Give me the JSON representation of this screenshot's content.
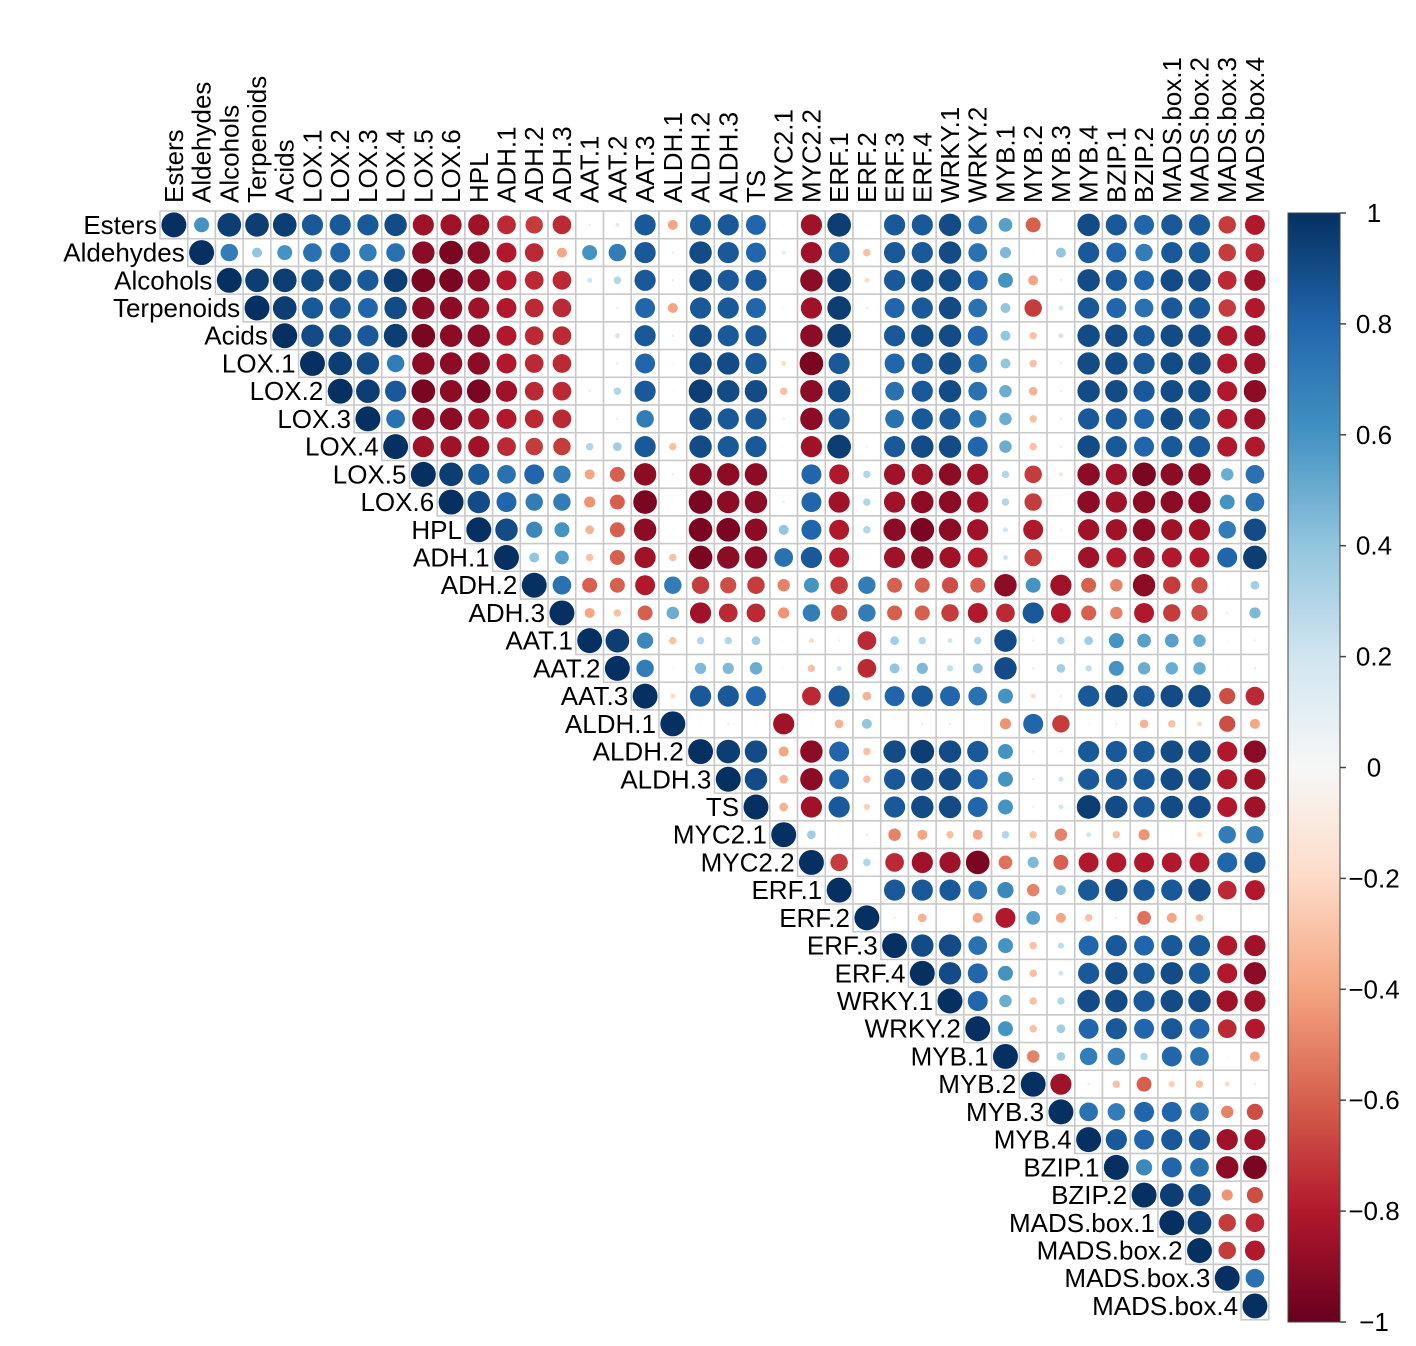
{
  "chart_data": {
    "type": "corrplot",
    "variables": [
      "Esters",
      "Aldehydes",
      "Alcohols",
      "Terpenoids",
      "Acids",
      "LOX.1",
      "LOX.2",
      "LOX.3",
      "LOX.4",
      "LOX.5",
      "LOX.6",
      "HPL",
      "ADH.1",
      "ADH.2",
      "ADH.3",
      "AAT.1",
      "AAT.2",
      "AAT.3",
      "ALDH.1",
      "ALDH.2",
      "ALDH.3",
      "TS",
      "MYC2.1",
      "MYC2.2",
      "ERF.1",
      "ERF.2",
      "ERF.3",
      "ERF.4",
      "WRKY.1",
      "WRKY.2",
      "MYB.1",
      "MYB.2",
      "MYB.3",
      "MYB.4",
      "BZIP.1",
      "BZIP.2",
      "MADS.box.1",
      "MADS.box.2",
      "MADS.box.3",
      "MADS.box.4"
    ],
    "values": [
      [
        1,
        0.6,
        0.95,
        0.95,
        0.95,
        0.85,
        0.85,
        0.85,
        0.9,
        -0.85,
        -0.85,
        -0.85,
        -0.75,
        -0.7,
        -0.75,
        0.1,
        0.15,
        0.85,
        -0.4,
        0.85,
        0.85,
        0.8,
        0.05,
        -0.85,
        0.95,
        0.05,
        0.85,
        0.85,
        0.9,
        0.75,
        0.55,
        -0.6,
        0.05,
        0.9,
        0.85,
        0.8,
        0.85,
        0.85,
        -0.7,
        -0.8
      ],
      [
        1,
        0.7,
        0.4,
        0.6,
        0.75,
        0.8,
        0.7,
        0.75,
        -0.9,
        -0.95,
        -0.9,
        -0.8,
        -0.75,
        -0.4,
        0.6,
        0.7,
        0.85,
        0.1,
        0.9,
        0.85,
        0.8,
        -0.15,
        -0.85,
        0.85,
        -0.3,
        0.85,
        0.85,
        0.9,
        0.75,
        0.45,
        0.05,
        0.4,
        0.85,
        0.8,
        0.7,
        0.85,
        0.85,
        -0.7,
        -0.75
      ],
      [
        1,
        0.95,
        0.95,
        0.9,
        0.9,
        0.85,
        0.95,
        -0.95,
        -0.95,
        -0.9,
        -0.8,
        -0.75,
        -0.75,
        0.2,
        0.3,
        0.85,
        0.1,
        0.9,
        0.85,
        0.85,
        -0.05,
        -0.9,
        0.95,
        -0.2,
        0.85,
        0.9,
        0.9,
        0.8,
        0.6,
        -0.4,
        0.1,
        0.9,
        0.85,
        0.8,
        0.9,
        0.9,
        -0.75,
        -0.85
      ],
      [
        1,
        0.95,
        0.85,
        0.85,
        0.8,
        0.9,
        -0.9,
        -0.9,
        -0.85,
        -0.8,
        -0.75,
        -0.75,
        0.05,
        0.1,
        0.8,
        -0.4,
        0.85,
        0.85,
        0.8,
        -0.05,
        -0.85,
        0.95,
        -0.1,
        0.8,
        0.85,
        0.9,
        0.75,
        0.4,
        -0.7,
        0.2,
        0.85,
        0.8,
        0.75,
        0.85,
        0.85,
        -0.7,
        -0.8
      ],
      [
        1,
        0.9,
        0.9,
        0.85,
        0.95,
        -0.95,
        -0.9,
        -0.9,
        -0.8,
        -0.75,
        -0.75,
        0.05,
        0.2,
        0.85,
        0.1,
        0.9,
        0.85,
        0.85,
        -0.05,
        -0.9,
        0.95,
        0.05,
        0.85,
        0.9,
        0.9,
        0.8,
        0.4,
        -0.3,
        0.2,
        0.9,
        0.9,
        0.85,
        0.9,
        0.9,
        -0.8,
        -0.85
      ],
      [
        1,
        0.95,
        0.9,
        0.7,
        -0.9,
        -0.9,
        -0.9,
        -0.8,
        -0.75,
        -0.75,
        0.05,
        0.1,
        0.8,
        0.05,
        0.9,
        0.9,
        0.85,
        -0.2,
        -0.95,
        0.85,
        0.05,
        0.8,
        0.85,
        0.9,
        0.75,
        0.4,
        -0.3,
        0.1,
        0.9,
        0.9,
        0.85,
        0.9,
        0.9,
        -0.8,
        -0.85
      ],
      [
        1,
        0.95,
        0.85,
        -0.95,
        -0.9,
        -0.95,
        -0.85,
        -0.75,
        -0.75,
        0.1,
        0.3,
        0.85,
        0.05,
        0.95,
        0.9,
        0.9,
        -0.3,
        -0.9,
        0.9,
        0.05,
        0.75,
        0.85,
        0.9,
        0.75,
        0.5,
        -0.35,
        0.1,
        0.9,
        0.9,
        0.85,
        0.9,
        0.9,
        -0.8,
        -0.9
      ],
      [
        1,
        0.75,
        -0.9,
        -0.9,
        -0.85,
        -0.8,
        -0.75,
        -0.75,
        0.05,
        0.1,
        0.7,
        0.05,
        0.9,
        0.85,
        0.85,
        -0.1,
        -0.9,
        0.85,
        0.05,
        0.75,
        0.85,
        0.85,
        0.7,
        0.5,
        -0.3,
        0.1,
        0.85,
        0.85,
        0.8,
        0.9,
        0.85,
        -0.8,
        -0.85
      ],
      [
        1,
        -0.85,
        -0.85,
        -0.85,
        -0.75,
        -0.7,
        -0.7,
        0.3,
        0.35,
        0.85,
        -0.3,
        0.9,
        0.85,
        0.85,
        0.05,
        -0.85,
        0.95,
        -0.1,
        0.85,
        0.9,
        0.9,
        0.8,
        0.5,
        -0.3,
        0.1,
        0.9,
        0.85,
        0.8,
        0.85,
        0.85,
        -0.8,
        -0.8
      ],
      [
        1,
        0.95,
        0.85,
        0.75,
        0.8,
        0.7,
        -0.4,
        -0.6,
        -0.9,
        0.1,
        -0.9,
        -0.9,
        -0.9,
        0.05,
        0.8,
        -0.8,
        0.3,
        -0.85,
        -0.85,
        -0.9,
        -0.85,
        0.3,
        -0.7,
        -0.15,
        -0.9,
        -0.85,
        -0.95,
        -0.9,
        -0.9,
        0.5,
        0.75
      ],
      [
        1,
        0.9,
        0.8,
        0.7,
        0.7,
        -0.45,
        -0.6,
        -0.95,
        -0.05,
        -0.95,
        -0.9,
        -0.9,
        0.1,
        0.8,
        -0.85,
        0.3,
        -0.85,
        -0.9,
        -0.9,
        -0.85,
        0.3,
        -0.7,
        -0.05,
        -0.9,
        -0.85,
        -0.9,
        -0.9,
        -0.9,
        0.6,
        0.75
      ],
      [
        1,
        0.9,
        0.65,
        0.6,
        -0.35,
        -0.6,
        -0.9,
        0.05,
        -0.95,
        -0.95,
        -0.9,
        0.4,
        0.8,
        -0.8,
        0.3,
        -0.9,
        -0.95,
        -0.9,
        -0.85,
        0.2,
        -0.8,
        -0.1,
        -0.85,
        -0.85,
        -0.9,
        -0.85,
        -0.85,
        0.7,
        0.9
      ],
      [
        1,
        0.4,
        0.55,
        -0.3,
        -0.6,
        -0.85,
        -0.3,
        -0.95,
        -0.9,
        -0.9,
        0.75,
        0.85,
        -0.8,
        0.05,
        -0.85,
        -0.9,
        -0.85,
        -0.8,
        0.2,
        -0.7,
        0.05,
        -0.85,
        -0.8,
        -0.85,
        -0.8,
        -0.8,
        0.8,
        0.95
      ],
      [
        1,
        0.75,
        -0.6,
        -0.6,
        -0.8,
        0.7,
        -0.7,
        -0.65,
        -0.7,
        -0.5,
        0.6,
        -0.7,
        0.7,
        -0.6,
        -0.6,
        -0.65,
        -0.6,
        -0.9,
        0.6,
        -0.85,
        -0.6,
        -0.5,
        -0.9,
        -0.7,
        -0.65,
        0.05,
        0.35
      ],
      [
        1,
        -0.4,
        -0.3,
        -0.6,
        0.5,
        -0.85,
        -0.75,
        -0.75,
        -0.45,
        0.7,
        -0.65,
        0.7,
        -0.6,
        -0.6,
        -0.7,
        -0.8,
        -0.75,
        0.85,
        -0.8,
        -0.6,
        -0.5,
        -0.8,
        -0.7,
        -0.65,
        0.1,
        0.45
      ],
      [
        1,
        0.95,
        0.65,
        -0.3,
        0.3,
        0.3,
        0.35,
        0.05,
        -0.2,
        0.1,
        -0.75,
        0.35,
        0.3,
        0.2,
        0.3,
        0.9,
        0.1,
        0.3,
        0.35,
        0.6,
        0.55,
        0.55,
        0.5,
        0.05,
        -0.1
      ],
      [
        1,
        0.7,
        0.05,
        0.45,
        0.45,
        0.5,
        0.05,
        -0.3,
        0.2,
        -0.75,
        0.4,
        0.45,
        0.25,
        0.4,
        0.9,
        0.1,
        0.35,
        0.25,
        0.6,
        0.5,
        0.5,
        0.5,
        0.05,
        0.1
      ],
      [
        1,
        -0.2,
        0.85,
        0.85,
        0.8,
        0.05,
        -0.75,
        0.85,
        -0.35,
        0.8,
        0.85,
        0.8,
        0.75,
        0.6,
        -0.2,
        0.1,
        0.85,
        0.9,
        0.85,
        0.9,
        0.9,
        -0.65,
        -0.75
      ],
      [
        1,
        0.05,
        0.1,
        0.05,
        -0.85,
        0.05,
        -0.35,
        0.4,
        0.05,
        0.1,
        0.1,
        0.05,
        -0.45,
        0.8,
        -0.7,
        0.05,
        0.1,
        -0.35,
        -0.3,
        -0.2,
        -0.65,
        -0.4
      ],
      [
        1,
        0.95,
        0.9,
        -0.4,
        -0.9,
        0.8,
        -0.3,
        0.9,
        0.95,
        0.9,
        0.85,
        0.6,
        -0.1,
        0.1,
        0.85,
        0.85,
        0.85,
        0.9,
        0.9,
        -0.8,
        -0.9
      ],
      [
        1,
        0.9,
        -0.35,
        -0.9,
        0.8,
        -0.3,
        0.85,
        0.9,
        0.9,
        0.8,
        0.6,
        -0.1,
        0.2,
        0.85,
        0.85,
        0.85,
        0.9,
        0.9,
        -0.8,
        -0.85
      ],
      [
        1,
        -0.35,
        -0.85,
        0.85,
        -0.25,
        0.85,
        0.9,
        0.9,
        0.8,
        0.6,
        -0.1,
        0.2,
        0.95,
        0.9,
        0.85,
        0.9,
        0.9,
        -0.8,
        -0.85
      ],
      [
        1,
        0.35,
        -0.05,
        -0.1,
        -0.5,
        -0.4,
        -0.3,
        -0.4,
        0.3,
        -0.3,
        -0.5,
        0.2,
        -0.3,
        -0.45,
        0.05,
        -0.2,
        0.7,
        0.7
      ],
      [
        1,
        -0.7,
        0.3,
        -0.75,
        -0.85,
        -0.85,
        -0.95,
        -0.55,
        0.45,
        -0.6,
        -0.8,
        -0.8,
        -0.8,
        -0.8,
        -0.8,
        0.8,
        0.85
      ],
      [
        1,
        0.05,
        0.85,
        0.85,
        0.85,
        0.75,
        0.65,
        -0.5,
        0.4,
        0.85,
        0.9,
        0.85,
        0.85,
        0.9,
        -0.75,
        -0.8
      ],
      [
        1,
        -0.1,
        -0.35,
        0.05,
        -0.4,
        -0.8,
        0.55,
        -0.4,
        -0.3,
        0.1,
        -0.55,
        -0.4,
        -0.3,
        -0.05,
        0.05
      ],
      [
        1,
        0.9,
        0.9,
        0.75,
        0.6,
        -0.3,
        0.25,
        0.8,
        0.85,
        0.8,
        0.85,
        0.85,
        -0.8,
        -0.85
      ],
      [
        1,
        0.9,
        0.8,
        0.6,
        -0.3,
        0.2,
        0.85,
        0.9,
        0.85,
        0.9,
        0.85,
        -0.8,
        -0.9
      ],
      [
        1,
        0.8,
        0.5,
        -0.3,
        0.3,
        0.9,
        0.9,
        0.85,
        0.9,
        0.9,
        -0.85,
        -0.85
      ],
      [
        1,
        0.6,
        -0.3,
        0.35,
        0.8,
        0.85,
        0.8,
        0.85,
        0.8,
        -0.75,
        -0.8
      ],
      [
        1,
        -0.5,
        0.35,
        0.7,
        0.7,
        0.3,
        0.8,
        0.75,
        0.05,
        -0.4
      ],
      [
        1,
        -0.85,
        -0.1,
        -0.3,
        -0.6,
        -0.25,
        -0.3,
        -0.2,
        0.1
      ],
      [
        1,
        0.75,
        0.7,
        0.8,
        0.8,
        0.75,
        -0.5,
        -0.65
      ],
      [
        1,
        0.85,
        0.8,
        0.85,
        0.85,
        -0.85,
        -0.85
      ],
      [
        1,
        0.65,
        0.8,
        0.75,
        -0.9,
        -0.95
      ],
      [
        1,
        0.95,
        0.9,
        -0.45,
        -0.65
      ],
      [
        1,
        0.95,
        -0.7,
        -0.75
      ],
      [
        1,
        -0.7,
        -0.8
      ],
      [
        1,
        0.75
      ],
      [
        1
      ]
    ],
    "colorscale": [
      "#67001f",
      "#b2182b",
      "#d6604d",
      "#f4a582",
      "#fddbc7",
      "#f7f7f7",
      "#d1e5f0",
      "#92c5de",
      "#4393c3",
      "#2166ac",
      "#053061"
    ],
    "zlim": [
      -1,
      1
    ],
    "zticks": [
      1,
      0.8,
      0.6,
      0.4,
      0.2,
      0,
      {
        "value": -0.2,
        "label": "−0.2"
      },
      {
        "value": -0.4,
        "label": "−0.4"
      },
      {
        "value": -0.6,
        "label": "−0.6"
      },
      {
        "value": -0.8,
        "label": "−0.8"
      },
      {
        "value": -1,
        "label": "−1"
      }
    ]
  }
}
